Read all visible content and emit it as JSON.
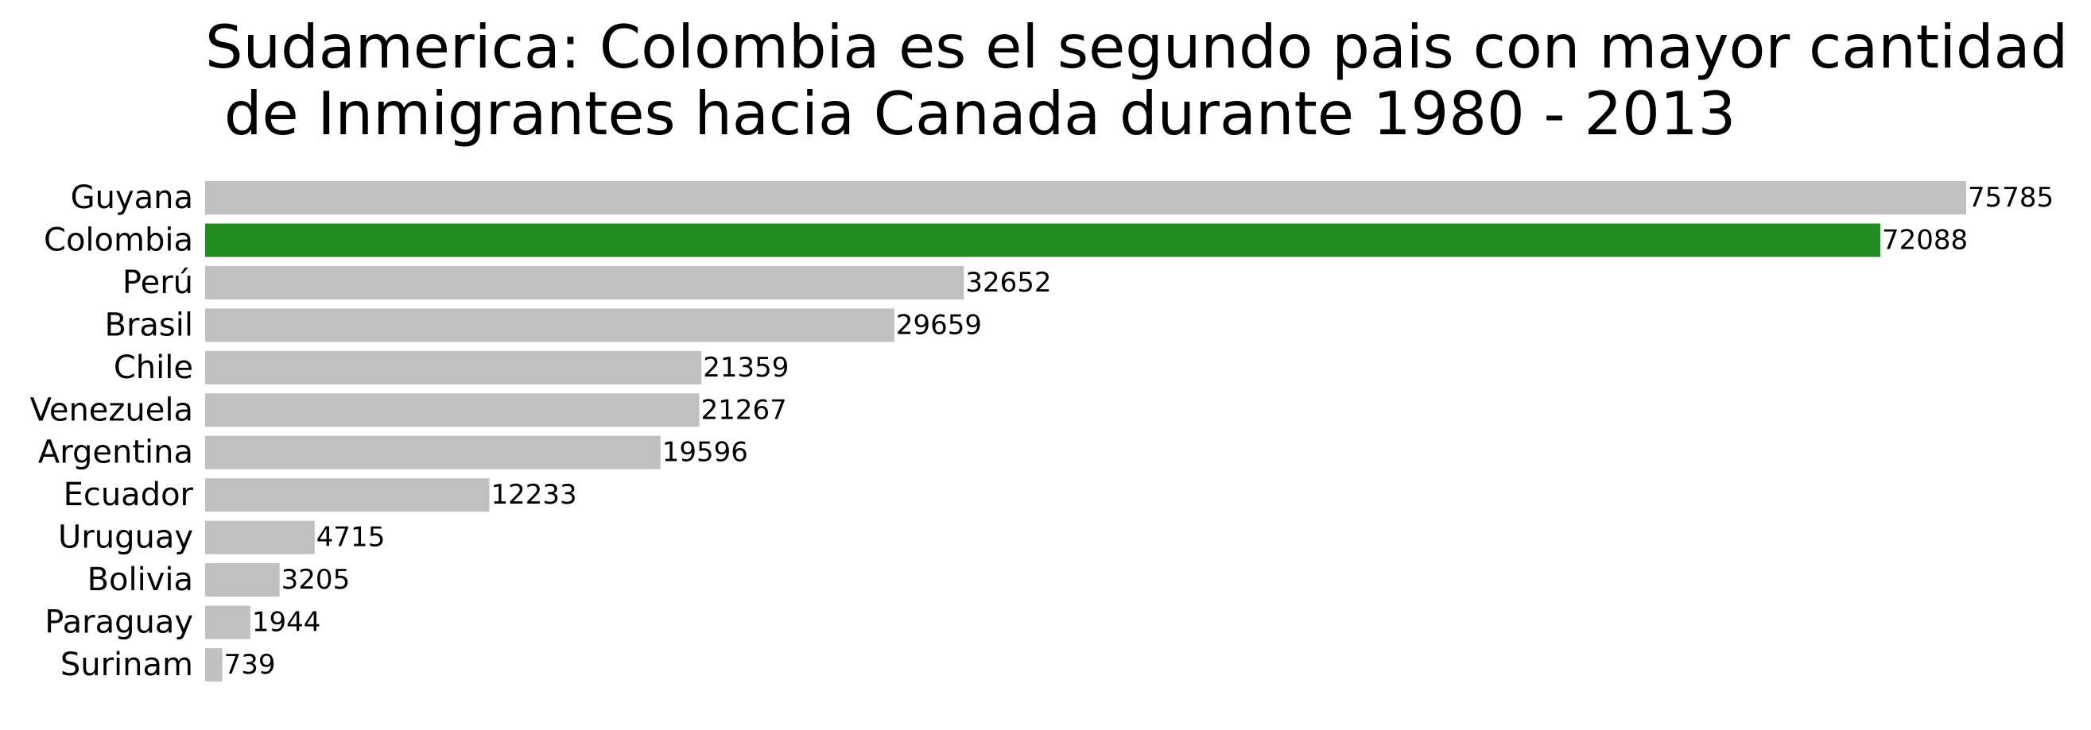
{
  "chart_data": {
    "type": "bar",
    "orientation": "horizontal",
    "title_lines": [
      "Sudamerica: Colombia es el segundo pais con mayor cantidad",
      " de Inmigrantes hacia Canada durante 1980 - 2013"
    ],
    "categories": [
      "Guyana",
      "Colombia",
      "Perú",
      "Brasil",
      "Chile",
      "Venezuela",
      "Argentina",
      "Ecuador",
      "Uruguay",
      "Bolivia",
      "Paraguay",
      "Surinam"
    ],
    "values": [
      75785,
      72088,
      32652,
      29659,
      21359,
      21267,
      19596,
      12233,
      4715,
      3205,
      1944,
      739
    ],
    "xlim": [
      0,
      80000
    ],
    "grid": false,
    "axes_visible": false,
    "bar_color": "#c0c0c0",
    "highlight_category": "Colombia",
    "highlight_color": "#228b22"
  }
}
